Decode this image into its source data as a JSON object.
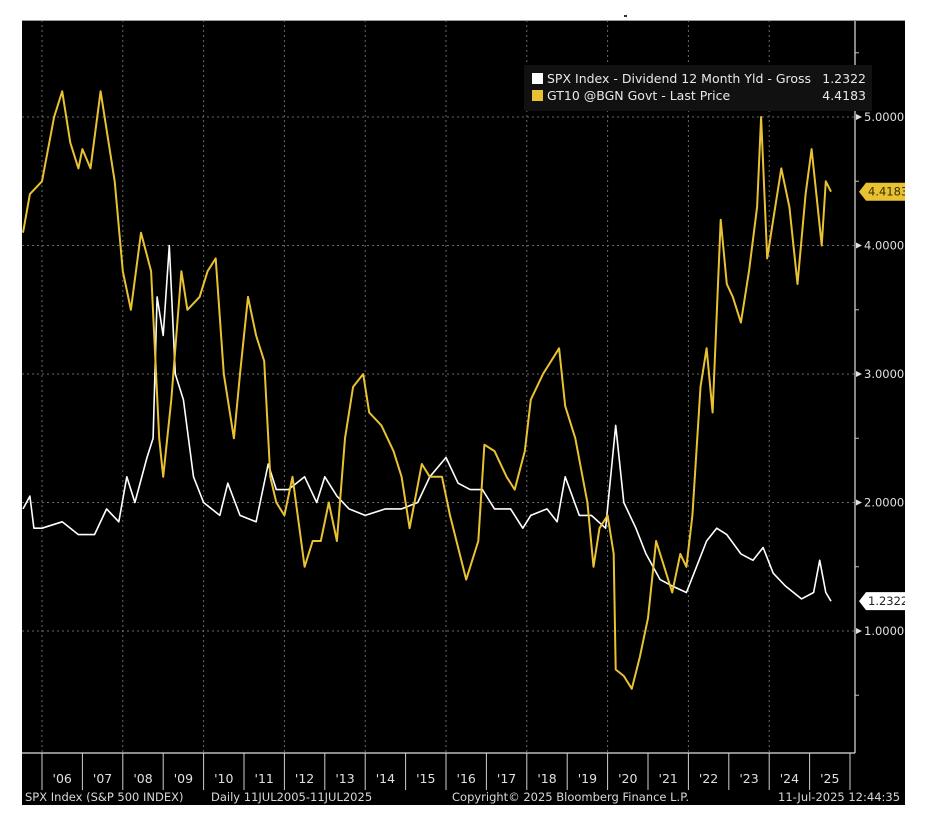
{
  "chart_data": {
    "type": "line",
    "title": "",
    "xlabel": "",
    "ylabel": "",
    "ylim": [
      0.0,
      5.8
    ],
    "x_range": [
      2005.53,
      2025.53
    ],
    "y_ticks": [
      {
        "value": 5.0,
        "label": "5.0000"
      },
      {
        "value": 4.0,
        "label": "4.0000"
      },
      {
        "value": 3.0,
        "label": "3.0000"
      },
      {
        "value": 2.0,
        "label": "2.0000"
      },
      {
        "value": 1.0,
        "label": "1.0000"
      }
    ],
    "x_ticks": [
      {
        "value": 2006,
        "label": "'06"
      },
      {
        "value": 2007,
        "label": "'07"
      },
      {
        "value": 2008,
        "label": "'08"
      },
      {
        "value": 2009,
        "label": "'09"
      },
      {
        "value": 2010,
        "label": "'10"
      },
      {
        "value": 2011,
        "label": "'11"
      },
      {
        "value": 2012,
        "label": "'12"
      },
      {
        "value": 2013,
        "label": "'13"
      },
      {
        "value": 2014,
        "label": "'14"
      },
      {
        "value": 2015,
        "label": "'15"
      },
      {
        "value": 2016,
        "label": "'16"
      },
      {
        "value": 2017,
        "label": "'17"
      },
      {
        "value": 2018,
        "label": "'18"
      },
      {
        "value": 2019,
        "label": "'19"
      },
      {
        "value": 2020,
        "label": "'20"
      },
      {
        "value": 2021,
        "label": "'21"
      },
      {
        "value": 2022,
        "label": "'22"
      },
      {
        "value": 2023,
        "label": "'23"
      },
      {
        "value": 2024,
        "label": "'24"
      },
      {
        "value": 2025,
        "label": "'25"
      }
    ],
    "grid": true,
    "legend_position": "top-right",
    "series": [
      {
        "name": "SPX Index - Dividend 12 Month Yld - Gross",
        "last_value": "1.2322",
        "color": "#ffffff",
        "x": [
          2005.53,
          2005.7,
          2005.8,
          2006.0,
          2006.5,
          2006.9,
          2007.3,
          2007.6,
          2007.9,
          2008.1,
          2008.3,
          2008.6,
          2008.75,
          2008.85,
          2009.0,
          2009.15,
          2009.3,
          2009.5,
          2009.75,
          2010.0,
          2010.4,
          2010.6,
          2010.9,
          2011.3,
          2011.6,
          2011.8,
          2012.1,
          2012.5,
          2012.8,
          2013.0,
          2013.3,
          2013.6,
          2014.0,
          2014.5,
          2014.9,
          2015.3,
          2015.6,
          2016.0,
          2016.3,
          2016.6,
          2016.9,
          2017.2,
          2017.6,
          2017.9,
          2018.1,
          2018.5,
          2018.75,
          2018.95,
          2019.3,
          2019.6,
          2019.95,
          2020.2,
          2020.4,
          2020.7,
          2020.95,
          2021.3,
          2021.6,
          2021.95,
          2022.2,
          2022.45,
          2022.7,
          2022.95,
          2023.3,
          2023.6,
          2023.85,
          2024.1,
          2024.4,
          2024.8,
          2025.1,
          2025.25,
          2025.4,
          2025.53
        ],
        "values": [
          1.95,
          2.05,
          1.8,
          1.8,
          1.85,
          1.75,
          1.75,
          1.95,
          1.85,
          2.2,
          2.0,
          2.35,
          2.5,
          3.6,
          3.3,
          4.0,
          3.0,
          2.8,
          2.2,
          2.0,
          1.9,
          2.15,
          1.9,
          1.85,
          2.3,
          2.1,
          2.1,
          2.2,
          2.0,
          2.2,
          2.05,
          1.95,
          1.9,
          1.95,
          1.95,
          2.0,
          2.2,
          2.35,
          2.15,
          2.1,
          2.1,
          1.95,
          1.95,
          1.8,
          1.9,
          1.95,
          1.85,
          2.2,
          1.9,
          1.9,
          1.8,
          2.6,
          2.0,
          1.8,
          1.6,
          1.4,
          1.35,
          1.3,
          1.5,
          1.7,
          1.8,
          1.75,
          1.6,
          1.55,
          1.65,
          1.45,
          1.35,
          1.25,
          1.3,
          1.55,
          1.3,
          1.2322
        ]
      },
      {
        "name": "GT10 @BGN Govt - Last Price",
        "last_value": "4.4183",
        "color": "#e8c232",
        "x": [
          2005.53,
          2005.7,
          2006.0,
          2006.3,
          2006.5,
          2006.7,
          2006.9,
          2007.0,
          2007.2,
          2007.45,
          2007.6,
          2007.8,
          2008.0,
          2008.2,
          2008.45,
          2008.7,
          2008.9,
          2009.0,
          2009.2,
          2009.45,
          2009.6,
          2009.9,
          2010.1,
          2010.3,
          2010.5,
          2010.75,
          2010.9,
          2011.1,
          2011.3,
          2011.5,
          2011.65,
          2011.8,
          2012.0,
          2012.2,
          2012.5,
          2012.7,
          2012.9,
          2013.1,
          2013.3,
          2013.5,
          2013.7,
          2013.95,
          2014.1,
          2014.4,
          2014.7,
          2014.9,
          2015.1,
          2015.4,
          2015.6,
          2015.9,
          2016.1,
          2016.5,
          2016.8,
          2016.95,
          2017.2,
          2017.5,
          2017.7,
          2017.95,
          2018.1,
          2018.4,
          2018.8,
          2018.95,
          2019.2,
          2019.5,
          2019.65,
          2019.8,
          2020.0,
          2020.15,
          2020.2,
          2020.4,
          2020.6,
          2020.8,
          2021.0,
          2021.2,
          2021.4,
          2021.6,
          2021.8,
          2021.95,
          2022.1,
          2022.3,
          2022.45,
          2022.6,
          2022.8,
          2022.95,
          2023.1,
          2023.3,
          2023.5,
          2023.7,
          2023.8,
          2023.95,
          2024.1,
          2024.3,
          2024.5,
          2024.7,
          2024.9,
          2025.05,
          2025.2,
          2025.3,
          2025.4,
          2025.53
        ],
        "values": [
          4.1,
          4.4,
          4.5,
          5.0,
          5.2,
          4.8,
          4.6,
          4.75,
          4.6,
          5.2,
          4.9,
          4.5,
          3.8,
          3.5,
          4.1,
          3.8,
          2.5,
          2.2,
          2.8,
          3.8,
          3.5,
          3.6,
          3.8,
          3.9,
          3.0,
          2.5,
          3.0,
          3.6,
          3.3,
          3.1,
          2.2,
          2.0,
          1.9,
          2.2,
          1.5,
          1.7,
          1.7,
          2.0,
          1.7,
          2.5,
          2.9,
          3.0,
          2.7,
          2.6,
          2.4,
          2.2,
          1.8,
          2.3,
          2.2,
          2.2,
          1.9,
          1.4,
          1.7,
          2.45,
          2.4,
          2.2,
          2.1,
          2.4,
          2.8,
          3.0,
          3.2,
          2.75,
          2.5,
          2.0,
          1.5,
          1.8,
          1.9,
          1.6,
          0.7,
          0.65,
          0.55,
          0.8,
          1.1,
          1.7,
          1.5,
          1.3,
          1.6,
          1.5,
          1.9,
          2.9,
          3.2,
          2.7,
          4.2,
          3.7,
          3.6,
          3.4,
          3.8,
          4.3,
          5.0,
          3.9,
          4.2,
          4.6,
          4.3,
          3.7,
          4.4,
          4.75,
          4.3,
          4.0,
          4.5,
          4.4183
        ]
      }
    ]
  },
  "legend": {
    "items": [
      {
        "label": "SPX Index - Dividend 12 Month Yld - Gross",
        "value": "1.2322",
        "color": "#ffffff"
      },
      {
        "label": "GT10 @BGN Govt - Last Price",
        "value": "4.4183",
        "color": "#e8c232"
      }
    ]
  },
  "badges": {
    "spx_last": "1.2322",
    "gt10_last": "4.4183"
  },
  "footer": {
    "security": "SPX Index (S&P 500 INDEX)",
    "period": "Daily 11JUL2005-11JUL2025",
    "copyright": "Copyright© 2025 Bloomberg Finance L.P.",
    "timestamp": "11-Jul-2025 12:44:35"
  }
}
